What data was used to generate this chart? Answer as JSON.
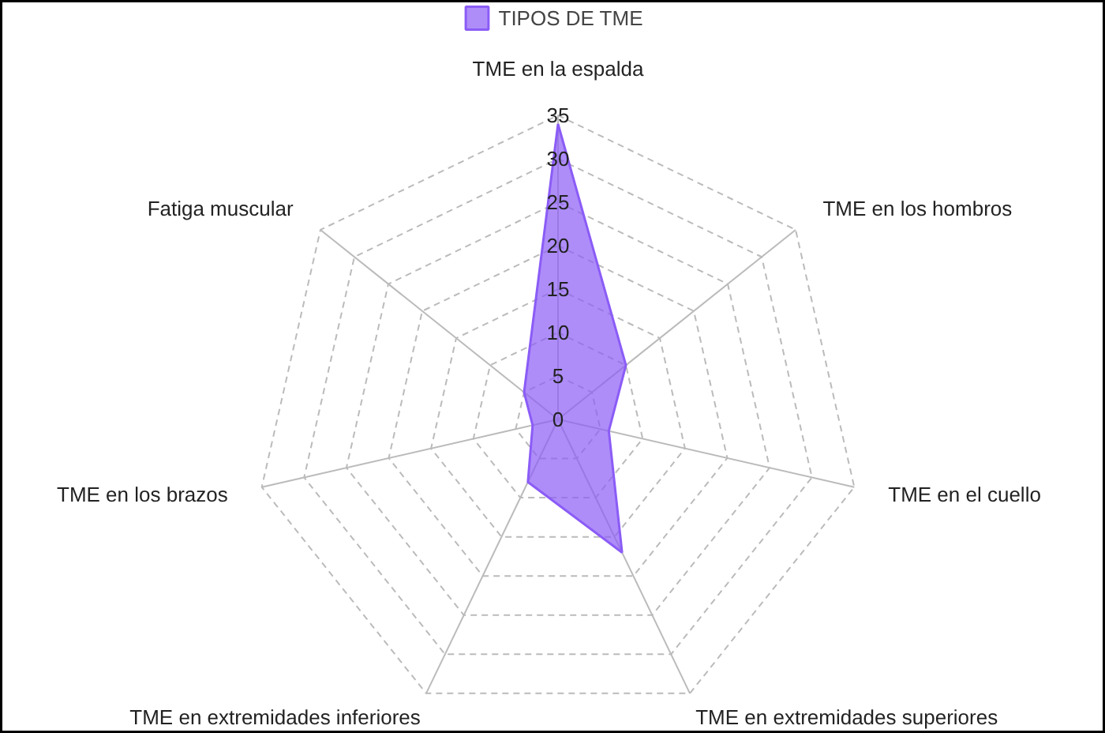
{
  "chart_data": {
    "type": "radar",
    "categories": [
      "TME en la espalda",
      "TME en los hombros",
      "TME en el cuello",
      "TME en extremidades superiores",
      "TME en extremidades inferiores",
      "TME en los brazos",
      "Fatiga muscular"
    ],
    "series": [
      {
        "name": "TIPOS DE TME",
        "color": "#8b5cf6",
        "values": [
          34,
          10,
          6,
          17,
          8,
          3,
          5
        ]
      }
    ],
    "ylim": [
      0,
      35
    ],
    "yticks": [
      0,
      5,
      10,
      15,
      20,
      25,
      30,
      35
    ],
    "grid": true,
    "legend": "top"
  }
}
